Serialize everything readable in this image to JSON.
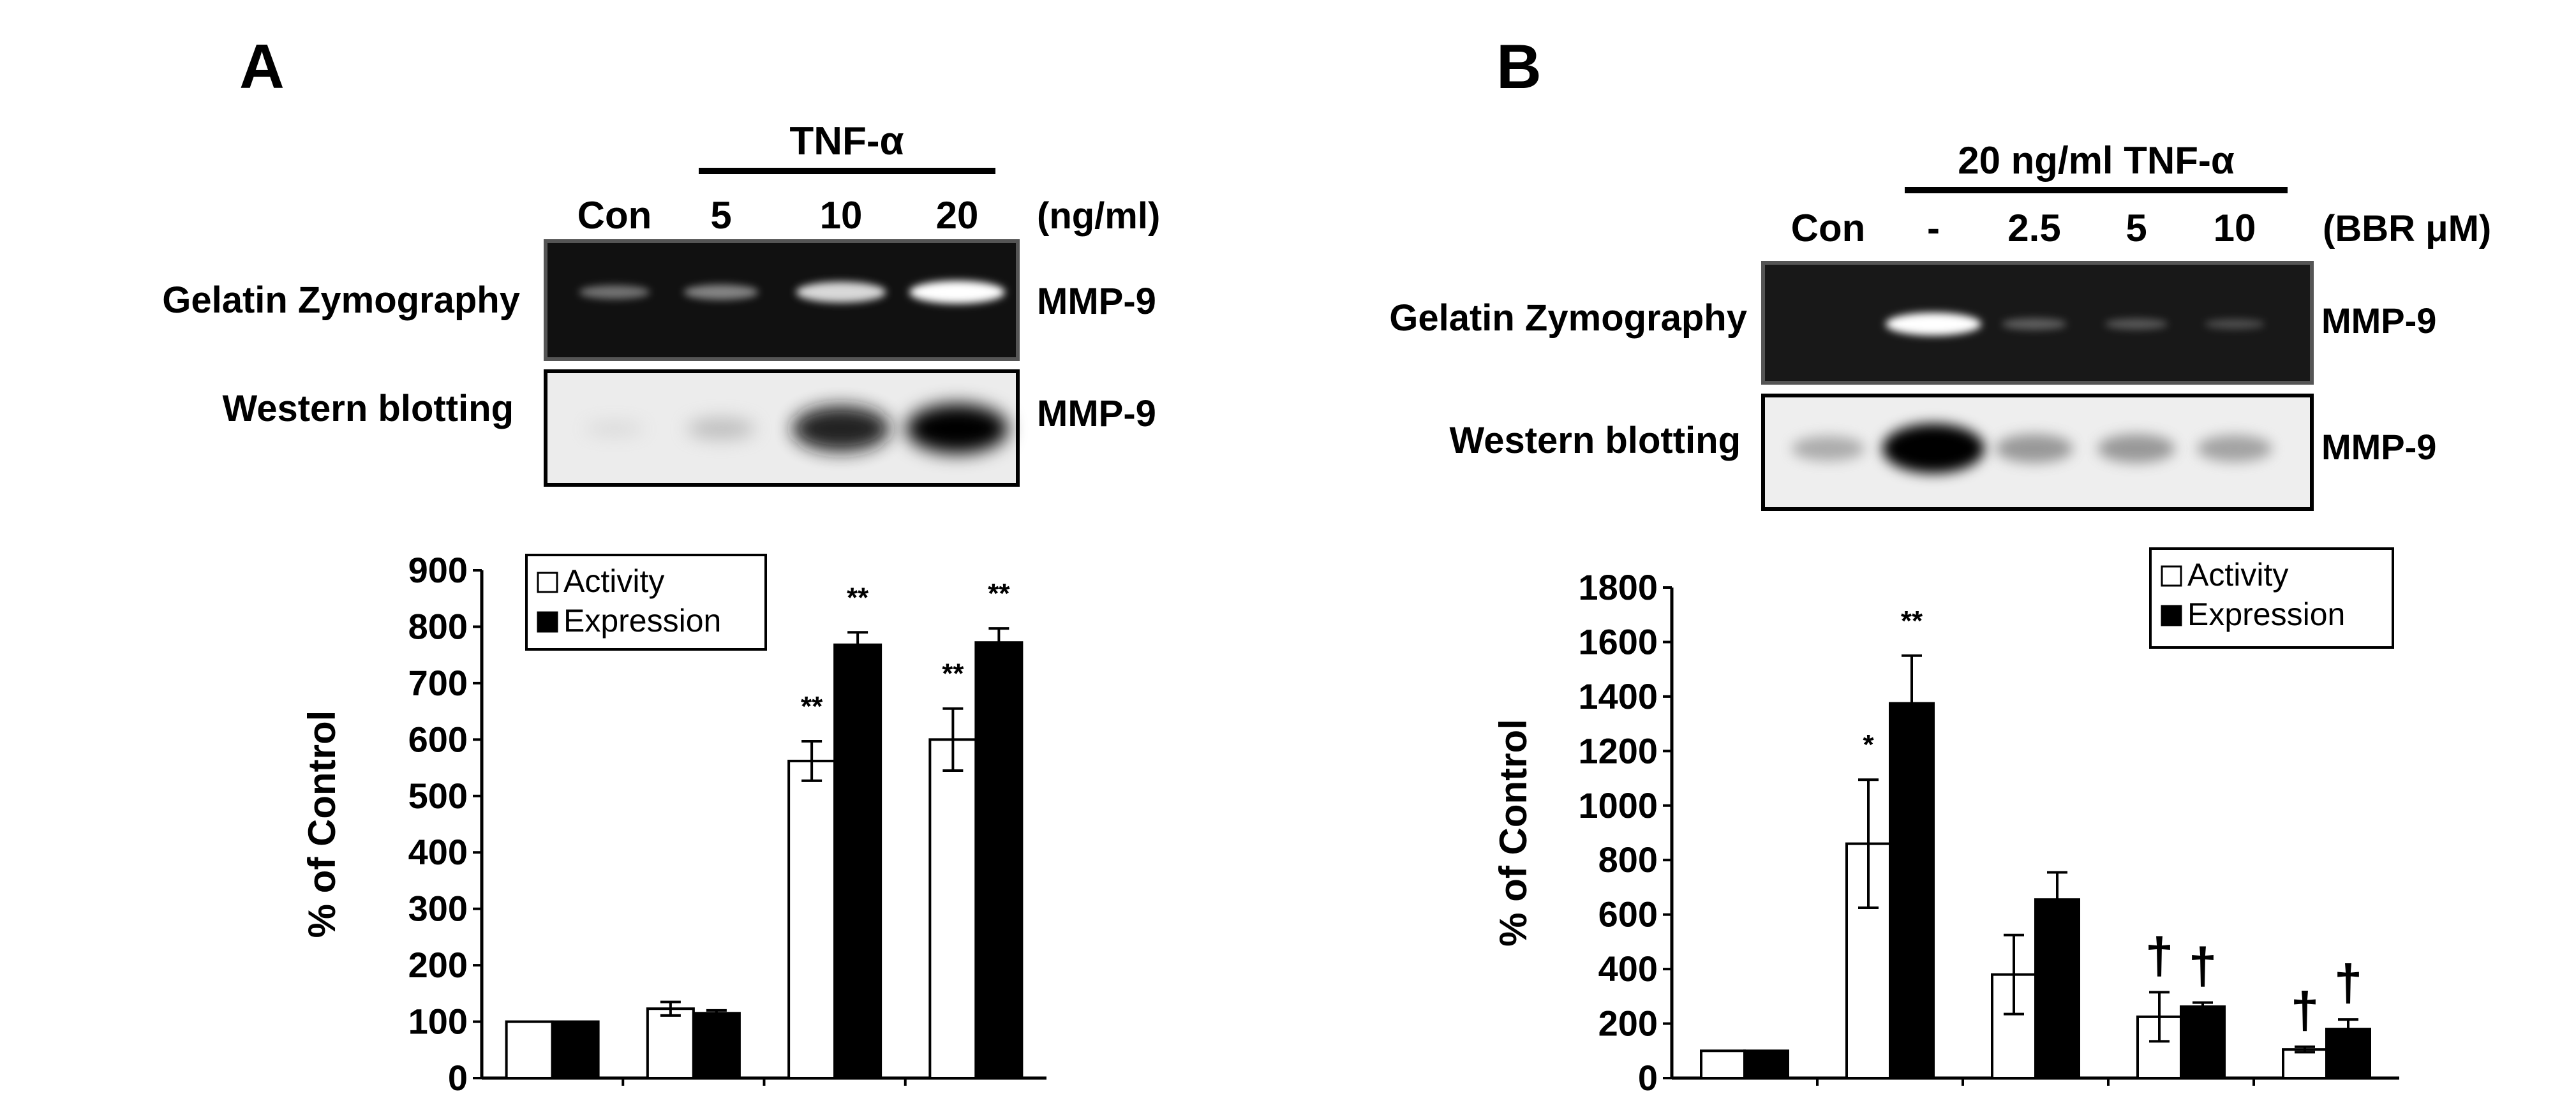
{
  "panel_a": {
    "letter": "A",
    "treatment_label": "TNF-α",
    "lanes": [
      "Con",
      "5",
      "10",
      "20"
    ],
    "unit": "(ng/ml)",
    "blot_rows": [
      "Gelatin Zymography",
      "Western blotting"
    ],
    "band_labels": [
      "MMP-9",
      "MMP-9"
    ],
    "zymo_band_strength": [
      0.35,
      0.45,
      0.85,
      1.0
    ],
    "western_band_strength": [
      0.05,
      0.25,
      0.9,
      1.0
    ]
  },
  "panel_b": {
    "letter": "B",
    "treatment_label": "20 ng/ml TNF-α",
    "lanes": [
      "Con",
      "-",
      "2.5",
      "5",
      "10"
    ],
    "unit": "(BBR μM)",
    "blot_rows": [
      "Gelatin Zymography",
      "Western blotting"
    ],
    "band_labels": [
      "MMP-9",
      "MMP-9"
    ],
    "zymo_band_strength": [
      0.0,
      1.0,
      0.2,
      0.15,
      0.08
    ],
    "western_band_strength": [
      0.35,
      1.0,
      0.45,
      0.45,
      0.4
    ]
  },
  "chart_data": [
    {
      "type": "bar",
      "panel": "A",
      "title": "",
      "xlabel": "",
      "ylabel": "% of Control",
      "ylim": [
        0,
        900
      ],
      "yticks": [
        0,
        100,
        200,
        300,
        400,
        500,
        600,
        700,
        800,
        900
      ],
      "legend_placement": "top-center",
      "grid": false,
      "categories": [
        "Con",
        "5",
        "10",
        "20"
      ],
      "series": [
        {
          "name": "Activity",
          "color": "#ffffff",
          "values": [
            100,
            123,
            562,
            600
          ],
          "errors": [
            0,
            12,
            35,
            55
          ]
        },
        {
          "name": "Expression",
          "color": "#000000",
          "values": [
            100,
            115,
            768,
            772
          ],
          "errors": [
            0,
            5,
            22,
            25
          ]
        }
      ],
      "annotations": [
        {
          "category": 2,
          "series": "Activity",
          "text": "**"
        },
        {
          "category": 2,
          "series": "Expression",
          "text": "**"
        },
        {
          "category": 3,
          "series": "Activity",
          "text": "**"
        },
        {
          "category": 3,
          "series": "Expression",
          "text": "**"
        }
      ]
    },
    {
      "type": "bar",
      "panel": "B",
      "title": "",
      "xlabel": "",
      "ylabel": "% of Control",
      "ylim": [
        0,
        1800
      ],
      "yticks": [
        0,
        200,
        400,
        600,
        800,
        1000,
        1200,
        1400,
        1600,
        1800
      ],
      "legend_placement": "top-right",
      "grid": false,
      "categories": [
        "Con",
        "-",
        "2.5",
        "5",
        "10"
      ],
      "series": [
        {
          "name": "Activity",
          "color": "#ffffff",
          "values": [
            100,
            860,
            380,
            225,
            105
          ],
          "errors": [
            0,
            235,
            145,
            90,
            10
          ]
        },
        {
          "name": "Expression",
          "color": "#000000",
          "values": [
            100,
            1375,
            655,
            262,
            180
          ],
          "errors": [
            0,
            175,
            100,
            15,
            35
          ]
        }
      ],
      "annotations": [
        {
          "category": 1,
          "series": "Activity",
          "text": "*"
        },
        {
          "category": 1,
          "series": "Expression",
          "text": "**"
        },
        {
          "category": 3,
          "series": "Activity",
          "text": "†"
        },
        {
          "category": 3,
          "series": "Expression",
          "text": "†"
        },
        {
          "category": 4,
          "series": "Activity",
          "text": "†"
        },
        {
          "category": 4,
          "series": "Expression",
          "text": "†"
        }
      ]
    }
  ]
}
